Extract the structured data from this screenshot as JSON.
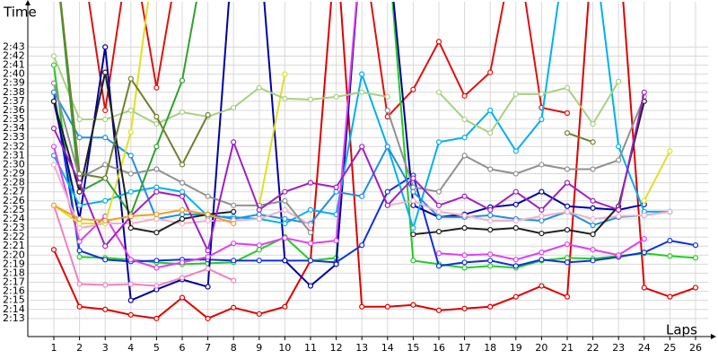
{
  "chart_data": {
    "type": "line",
    "x_label": "Laps",
    "y_label": "Time",
    "x": [
      1,
      2,
      3,
      4,
      5,
      6,
      7,
      8,
      9,
      10,
      11,
      12,
      13,
      14,
      15,
      16,
      17,
      18,
      19,
      20,
      21,
      22,
      23,
      24,
      25,
      26
    ],
    "xlim": [
      0,
      26.5
    ],
    "xticks": [
      1,
      2,
      3,
      4,
      5,
      6,
      7,
      8,
      9,
      10,
      11,
      12,
      13,
      14,
      15,
      16,
      17,
      18,
      19,
      20,
      21,
      22,
      23,
      24,
      25,
      26
    ],
    "ylim": [
      131,
      168
    ],
    "yticks": [
      {
        "value": 133,
        "label": "2:13"
      },
      {
        "value": 134,
        "label": "2:14"
      },
      {
        "value": 135,
        "label": "2:15"
      },
      {
        "value": 136,
        "label": "2:16"
      },
      {
        "value": 137,
        "label": "2:17"
      },
      {
        "value": 138,
        "label": "2:18"
      },
      {
        "value": 139,
        "label": "2:19"
      },
      {
        "value": 140,
        "label": "2:20"
      },
      {
        "value": 141,
        "label": "2:21"
      },
      {
        "value": 142,
        "label": "2:22"
      },
      {
        "value": 143,
        "label": "2:23"
      },
      {
        "value": 144,
        "label": "2:24"
      },
      {
        "value": 145,
        "label": "2:25"
      },
      {
        "value": 146,
        "label": "2:26"
      },
      {
        "value": 147,
        "label": "2:27"
      },
      {
        "value": 148,
        "label": "2:28"
      },
      {
        "value": 149,
        "label": "2:29"
      },
      {
        "value": 150,
        "label": "2:30"
      },
      {
        "value": 151,
        "label": "2:31"
      },
      {
        "value": 152,
        "label": "2:32"
      },
      {
        "value": 153,
        "label": "2:33"
      },
      {
        "value": 154,
        "label": "2:34"
      },
      {
        "value": 155,
        "label": "2:35"
      },
      {
        "value": 156,
        "label": "2:36"
      },
      {
        "value": 157,
        "label": "2:37"
      },
      {
        "value": 158,
        "label": "2:38"
      },
      {
        "value": 159,
        "label": "2:39"
      },
      {
        "value": 160,
        "label": "2:40"
      },
      {
        "value": 161,
        "label": "2:41"
      },
      {
        "value": 162,
        "label": "2:42"
      },
      {
        "value": 163,
        "label": "2:43"
      }
    ],
    "grid": true,
    "series": [
      {
        "color": "#e00000",
        "values": [
          140.6,
          134.3,
          134,
          133.4,
          133,
          135.3,
          133,
          134.2,
          133.5,
          134.3,
          139.4,
          175,
          134.3,
          134.3,
          134.5,
          133.9,
          134.1,
          134.3,
          135.4,
          136.6,
          135.4,
          175,
          175,
          136.4,
          135.4,
          136.4
        ]
      },
      {
        "color": "#e01010",
        "values": [
          null,
          175,
          156,
          175,
          158.5,
          175,
          null,
          null,
          null,
          null,
          null,
          null,
          175,
          155.3,
          158.3,
          163.6,
          157.6,
          160.2,
          175,
          156.3,
          155.7,
          null,
          null,
          null,
          null,
          null
        ]
      },
      {
        "color": "#22cc22",
        "values": [
          161,
          139.8,
          139.7,
          139.5,
          139.2,
          139,
          139.1,
          139.2,
          140.6,
          142,
          139.4,
          139.7,
          175,
          175,
          139.4,
          139,
          138.6,
          138.8,
          138.6,
          139.4,
          139.7,
          139.6,
          139.9,
          140.2,
          139.9,
          139.7
        ]
      },
      {
        "color": "#1030e0",
        "values": [
          158,
          140.5,
          139.5,
          139.3,
          139.4,
          139.5,
          139.5,
          139.4,
          139.4,
          139.4,
          139.4,
          139.2,
          141.1,
          147,
          148.8,
          138.8,
          139.2,
          139.4,
          138.8,
          139.5,
          139.2,
          139.4,
          139.8,
          140.3,
          141.6,
          141.1
        ]
      },
      {
        "color": "#0000a0",
        "values": [
          157,
          144,
          163,
          135,
          136.2,
          137.3,
          136.5,
          175,
          175,
          139.4,
          136.6,
          139,
          175,
          175,
          145.5,
          144.2,
          144.5,
          145.3,
          145.6,
          147,
          145.4,
          145.2,
          145,
          145.6,
          null,
          null
        ]
      },
      {
        "color": "#00b0f0",
        "values": [
          151,
          145.5,
          146,
          147,
          147.5,
          147,
          144.3,
          144.2,
          144,
          143.5,
          145,
          144.5,
          160,
          152,
          143,
          152.5,
          153,
          156,
          151.5,
          155,
          175,
          175,
          152,
          144.8,
          144.8,
          null
        ]
      },
      {
        "color": "#2090e0",
        "values": [
          158,
          153,
          153,
          151,
          144,
          144.5,
          144.5,
          144,
          144.5,
          144,
          143.5,
          147,
          146.5,
          152,
          147,
          144.2,
          144.2,
          144.4,
          144,
          143.8,
          144.8,
          143.3,
          144.2,
          144.4,
          144.8,
          null
        ]
      },
      {
        "color": "#e040f0",
        "values": [
          152,
          141.5,
          144.3,
          139.5,
          138.6,
          139.2,
          139.8,
          141.3,
          141.1,
          141.9,
          141.3,
          141.6,
          175,
          null,
          null,
          140.2,
          140,
          140.1,
          139.5,
          140.3,
          141.2,
          140.6,
          140,
          141.8,
          null,
          null
        ]
      },
      {
        "color": "#f080c0",
        "values": [
          145.5,
          136.8,
          136.7,
          136.8,
          136.6,
          137.5,
          138.5,
          137.2,
          null,
          null,
          null,
          null,
          null,
          null,
          null,
          null,
          null,
          null,
          null,
          null,
          null,
          null,
          null,
          null,
          null,
          null
        ]
      },
      {
        "color": "#f0b0c8",
        "values": [
          150,
          143,
          143.5,
          143.5,
          144,
          143.5,
          143.8,
          143.8,
          144,
          145,
          143.3,
          null,
          null,
          145.5,
          146,
          144.8,
          144.4,
          143.8,
          143.8,
          144.3,
          144.8,
          144,
          144.3,
          144.4,
          144.8,
          null
        ]
      },
      {
        "color": "#e0e020",
        "values": [
          145.5,
          143.5,
          143.5,
          153.6,
          175,
          null,
          null,
          null,
          145.5,
          160,
          null,
          null,
          null,
          null,
          null,
          null,
          null,
          null,
          null,
          null,
          null,
          null,
          null,
          146,
          151.5,
          null
        ]
      },
      {
        "color": "#a8d080",
        "values": [
          162,
          155,
          155,
          156,
          154.5,
          155.8,
          155.3,
          156.3,
          158.5,
          157.3,
          157.2,
          157.5,
          158,
          157.5,
          null,
          158,
          155,
          153.5,
          157.8,
          157.8,
          158.5,
          154.5,
          159.2,
          null,
          null,
          null
        ]
      },
      {
        "color": "#30a030",
        "values": [
          175,
          147,
          148.5,
          144.5,
          152,
          159.3,
          175,
          null,
          null,
          null,
          null,
          null,
          null,
          null,
          null,
          null,
          null,
          null,
          null,
          null,
          null,
          null,
          null,
          null,
          null,
          null
        ]
      },
      {
        "color": "#909090",
        "values": [
          159,
          148.5,
          150,
          149,
          149.5,
          148,
          146.5,
          145.5,
          145.5,
          146,
          142.5,
          null,
          null,
          156,
          147.5,
          147,
          151,
          149.5,
          149,
          150,
          149.5,
          149.5,
          150.5,
          157.5,
          null,
          null
        ]
      },
      {
        "color": "#202020",
        "values": [
          157,
          147,
          160.2,
          143,
          142.5,
          144,
          144.5,
          144.8,
          null,
          null,
          null,
          null,
          null,
          null,
          142.3,
          142.6,
          143,
          142.8,
          143,
          142.4,
          142.8,
          142.3,
          145.4,
          157,
          null,
          null
        ]
      },
      {
        "color": "#708030",
        "values": [
          175,
          149,
          148.5,
          159.5,
          155.3,
          150,
          155.5,
          null,
          null,
          null,
          null,
          null,
          null,
          null,
          null,
          null,
          null,
          null,
          null,
          null,
          153.5,
          152.5,
          null,
          null,
          null,
          null
        ]
      },
      {
        "color": "#a020c0",
        "values": [
          154,
          148,
          141,
          144.3,
          147,
          146.5,
          140.5,
          152.5,
          145,
          147,
          148,
          147.5,
          152,
          145.5,
          148.5,
          145.5,
          146.5,
          145,
          147,
          145,
          148,
          146,
          145,
          158,
          null,
          null
        ]
      },
      {
        "color": "#f0a020",
        "values": [
          145.5,
          144,
          143.8,
          144.3,
          144.5,
          145,
          144.5,
          143.5,
          null,
          null,
          null,
          null,
          null,
          null,
          null,
          null,
          null,
          null,
          null,
          null,
          null,
          null,
          null,
          null,
          null,
          null
        ]
      }
    ]
  }
}
